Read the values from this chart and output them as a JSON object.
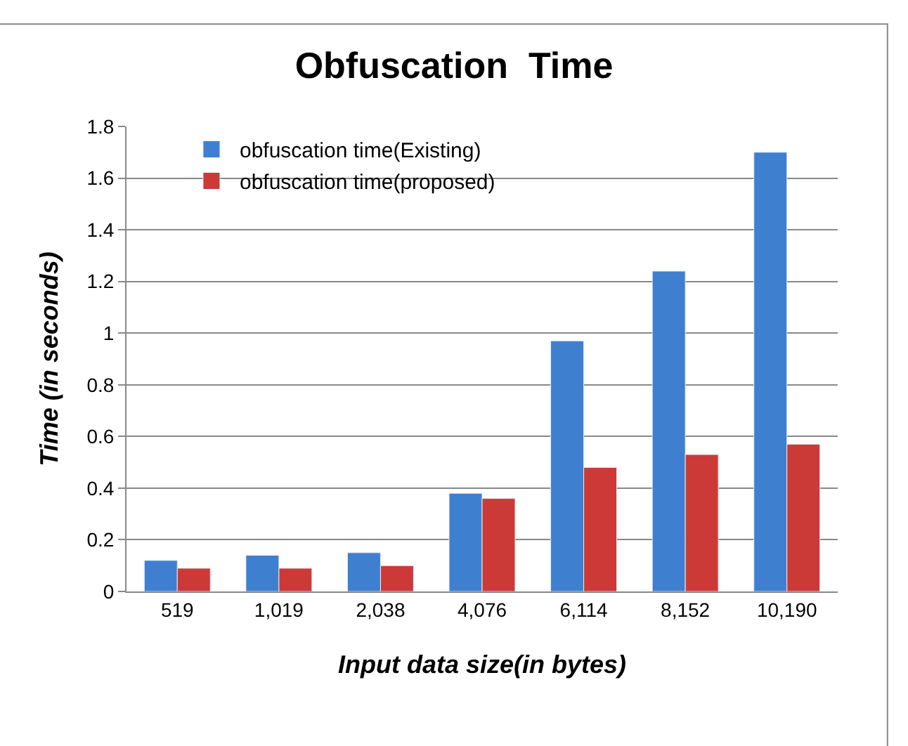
{
  "chart_data": {
    "type": "bar",
    "title": "Obfuscation  Time",
    "xlabel": "Input data size(in bytes)",
    "ylabel": "Time (in seconds)",
    "categories": [
      "519",
      "1,019",
      "2,038",
      "4,076",
      "6,114",
      "8,152",
      "10,190"
    ],
    "series": [
      {
        "name": "obfuscation time(Existing)",
        "color": "#3f7fcf",
        "values": [
          0.12,
          0.14,
          0.15,
          0.38,
          0.97,
          1.24,
          1.7
        ]
      },
      {
        "name": "obfuscation time(proposed)",
        "color": "#cc3a37",
        "values": [
          0.09,
          0.09,
          0.1,
          0.36,
          0.48,
          0.53,
          0.57
        ]
      }
    ],
    "ylim": [
      0,
      1.8
    ],
    "yticks": [
      0,
      0.2,
      0.4,
      0.6,
      0.8,
      1,
      1.2,
      1.4,
      1.6,
      1.8
    ],
    "grid": "y",
    "legend": "top left"
  }
}
